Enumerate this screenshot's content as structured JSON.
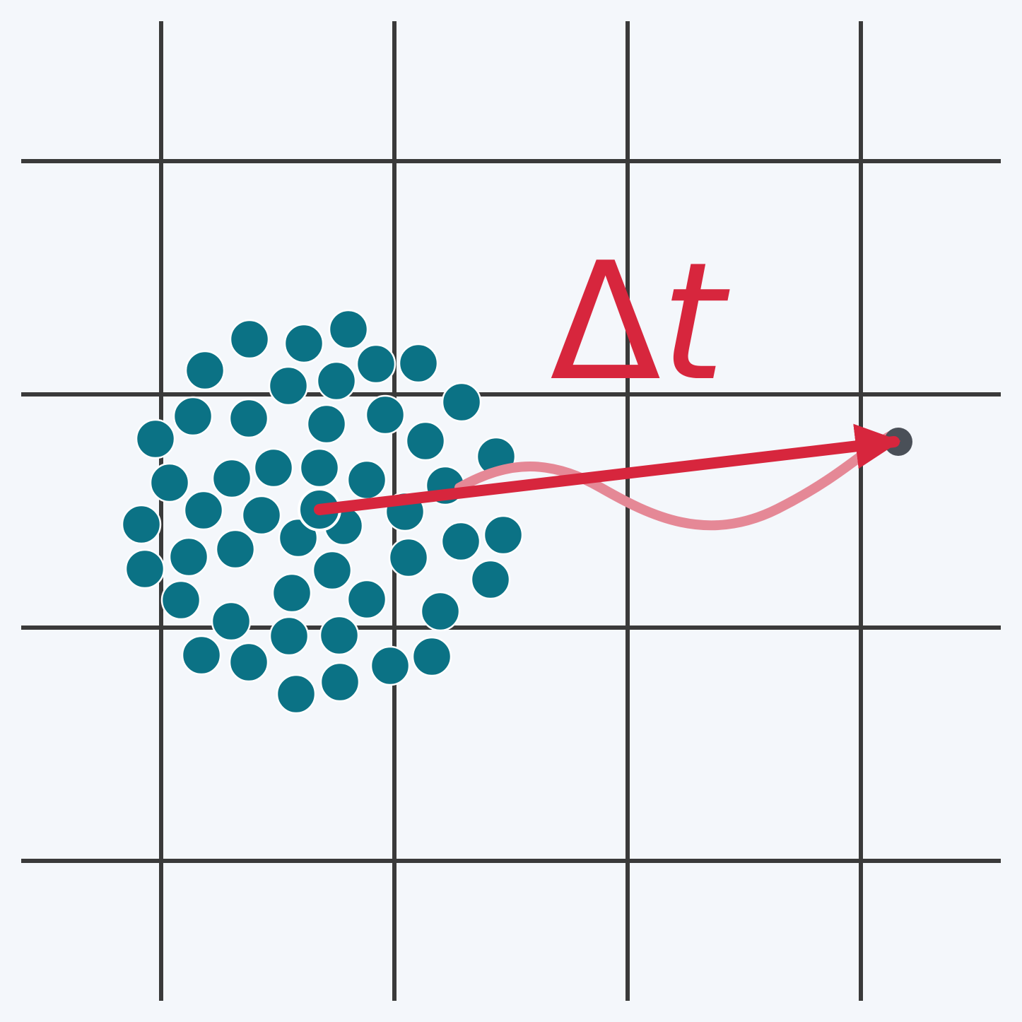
{
  "label": {
    "delta": "Δ",
    "t": "t"
  },
  "colors": {
    "background": "#f4f7fb",
    "grid": "#3a3a3a",
    "particle": "#0b7285",
    "arrow": "#d7263d",
    "path": "#e58896",
    "target": "#4a5058"
  }
}
